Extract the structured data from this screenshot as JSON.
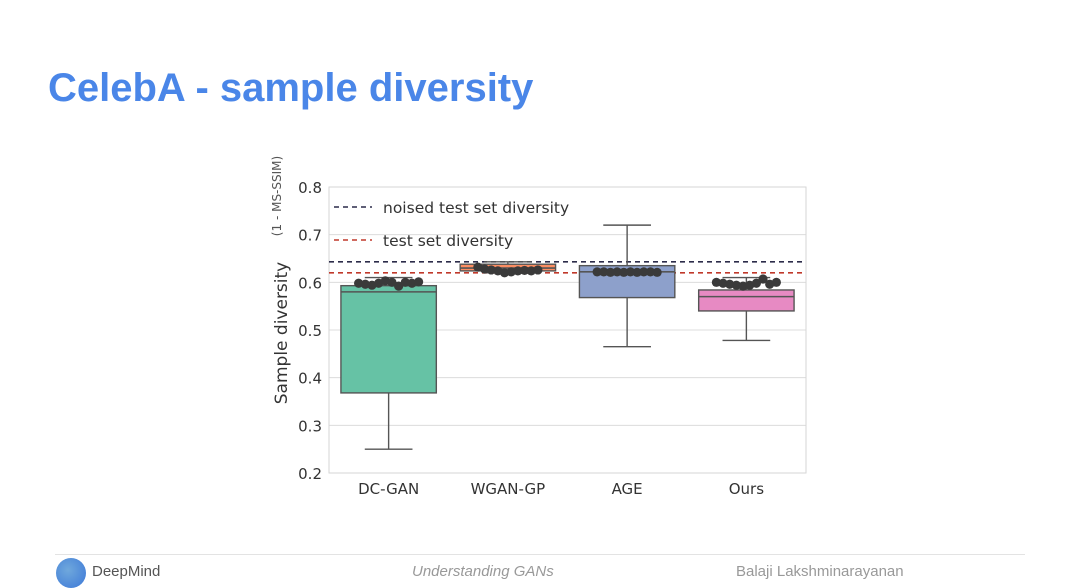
{
  "slide": {
    "title": "CelebA - sample diversity"
  },
  "footer": {
    "brand": "DeepMind",
    "center": "Understanding GANs",
    "right": "Balaji Lakshminarayanan"
  },
  "colors": {
    "title": "#4a86e8",
    "noised_line": "#2c2c4a",
    "test_line": "#c0392b",
    "points": "#3a3a3a"
  },
  "chart_data": {
    "type": "box",
    "ylabel": "Sample diversity",
    "ylabel_sub": "(1 - MS-SSIM)",
    "ylim": [
      0.2,
      0.8
    ],
    "yticks": [
      "0.2",
      "0.3",
      "0.4",
      "0.5",
      "0.6",
      "0.7",
      "0.8"
    ],
    "grid": true,
    "legend_position": "top-left",
    "categories": [
      "DC-GAN",
      "WGAN-GP",
      "AGE",
      "Ours"
    ],
    "boxes": [
      {
        "name": "DC-GAN",
        "color": "#66c2a5",
        "whislo": 0.25,
        "q1": 0.368,
        "median": 0.58,
        "q3": 0.593,
        "whishi": 0.61,
        "points": [
          0.598,
          0.596,
          0.594,
          0.598,
          0.603,
          0.6,
          0.592,
          0.6,
          0.598,
          0.601
        ]
      },
      {
        "name": "WGAN-GP",
        "color": "#fc8d62",
        "whislo": 0.62,
        "q1": 0.624,
        "median": 0.63,
        "q3": 0.638,
        "whishi": 0.643,
        "points": [
          0.632,
          0.628,
          0.626,
          0.624,
          0.62,
          0.622,
          0.624,
          0.625,
          0.624,
          0.626
        ]
      },
      {
        "name": "AGE",
        "color": "#8da0cb",
        "whislo": 0.465,
        "q1": 0.568,
        "median": 0.622,
        "q3": 0.635,
        "whishi": 0.72,
        "points": [
          0.622,
          0.622,
          0.621,
          0.622,
          0.621,
          0.622,
          0.621,
          0.622,
          0.622,
          0.621
        ]
      },
      {
        "name": "Ours",
        "color": "#e78ac3",
        "whislo": 0.478,
        "q1": 0.54,
        "median": 0.57,
        "q3": 0.584,
        "whishi": 0.61,
        "points": [
          0.6,
          0.598,
          0.596,
          0.594,
          0.592,
          0.594,
          0.598,
          0.607,
          0.596,
          0.6
        ]
      }
    ],
    "reference_lines": [
      {
        "label": "noised test set diversity",
        "value": 0.643,
        "color": "#2c2c4a"
      },
      {
        "label": "test set diversity",
        "value": 0.62,
        "color": "#c0392b"
      }
    ]
  }
}
